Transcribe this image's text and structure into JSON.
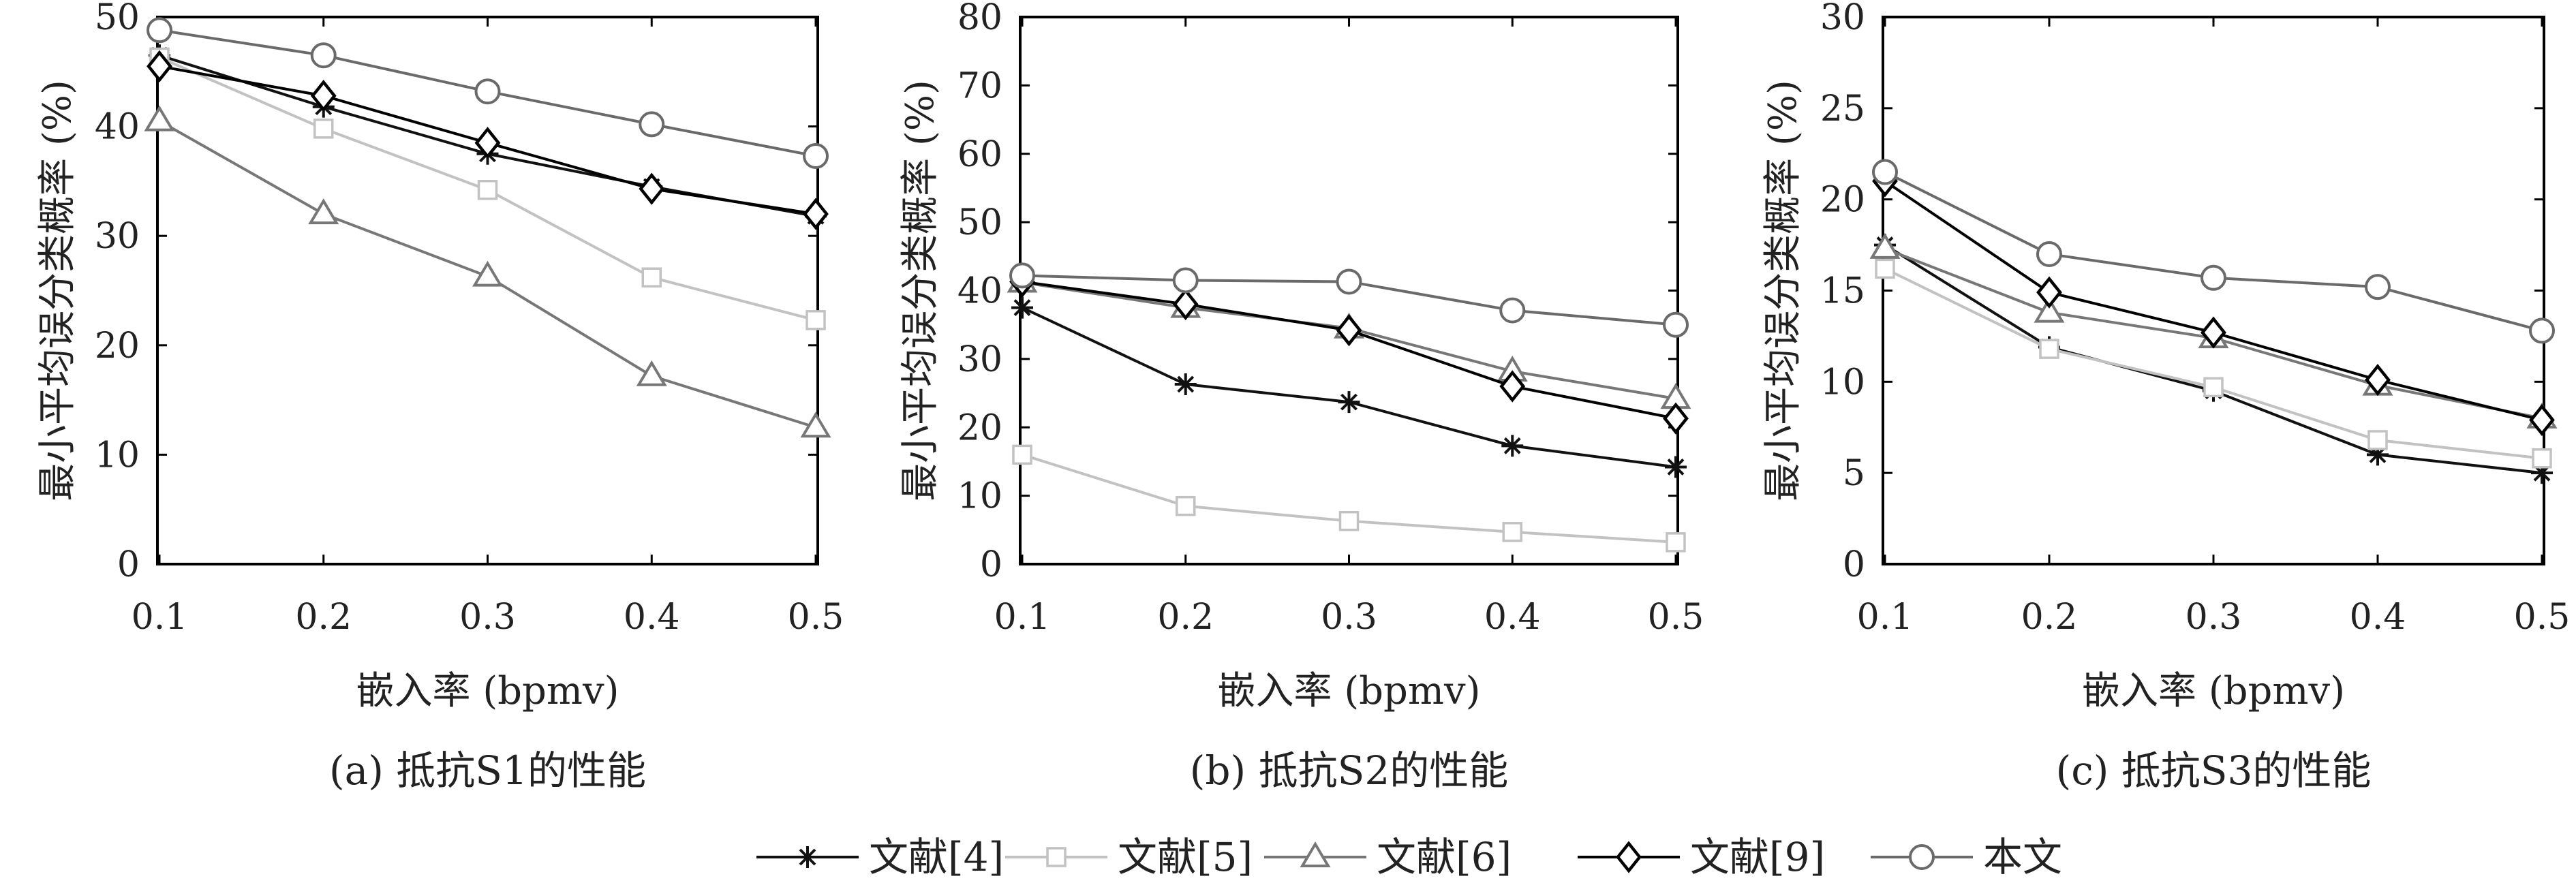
{
  "shared": {
    "xlabel": "嵌入率 (bpmv)",
    "ylabel": "最小平均误分类概率 (%)"
  },
  "legend": [
    {
      "label": "文献[4]",
      "marker": "asterisk",
      "color": "#111111"
    },
    {
      "label": "文献[5]",
      "marker": "square",
      "color": "#c2c2c2"
    },
    {
      "label": "文献[6]",
      "marker": "triangle",
      "color": "#777777"
    },
    {
      "label": "文献[9]",
      "marker": "diamond",
      "color": "#000000"
    },
    {
      "label": "本文",
      "marker": "circle",
      "color": "#6a6a6a"
    }
  ],
  "chart_data": [
    {
      "type": "line",
      "caption": "(a) 抵抗S1的性能",
      "xlabel": "嵌入率 (bpmv)",
      "ylabel": "最小平均误分类概率 (%)",
      "x": [
        0.1,
        0.2,
        0.3,
        0.4,
        0.5
      ],
      "xticks": [
        "0.1",
        "0.2",
        "0.3",
        "0.4",
        "0.5"
      ],
      "ylim": [
        0,
        50
      ],
      "yticks": [
        0,
        10,
        20,
        30,
        40,
        50
      ],
      "series": [
        {
          "name": "文献[4]",
          "values": [
            46.5,
            41.8,
            37.5,
            34.5,
            31.8
          ]
        },
        {
          "name": "文献[5]",
          "values": [
            46.3,
            39.8,
            34.2,
            26.2,
            22.3
          ]
        },
        {
          "name": "文献[6]",
          "values": [
            40.5,
            32.0,
            26.3,
            17.2,
            12.5
          ]
        },
        {
          "name": "文献[9]",
          "values": [
            45.5,
            42.8,
            38.5,
            34.3,
            32.0
          ]
        },
        {
          "name": "本文",
          "values": [
            48.8,
            46.5,
            43.2,
            40.2,
            37.3
          ]
        }
      ]
    },
    {
      "type": "line",
      "caption": "(b) 抵抗S2的性能",
      "xlabel": "嵌入率 (bpmv)",
      "ylabel": "最小平均误分类概率 (%)",
      "x": [
        0.1,
        0.2,
        0.3,
        0.4,
        0.5
      ],
      "xticks": [
        "0.1",
        "0.2",
        "0.3",
        "0.4",
        "0.5"
      ],
      "ylim": [
        0,
        80
      ],
      "yticks": [
        0,
        10,
        20,
        30,
        40,
        50,
        60,
        70,
        80
      ],
      "series": [
        {
          "name": "文献[4]",
          "values": [
            37.5,
            26.3,
            23.7,
            17.3,
            14.2
          ]
        },
        {
          "name": "文献[5]",
          "values": [
            16.0,
            8.5,
            6.3,
            4.7,
            3.2
          ]
        },
        {
          "name": "文献[6]",
          "values": [
            41.2,
            37.5,
            34.5,
            28.2,
            24.2
          ]
        },
        {
          "name": "文献[9]",
          "values": [
            41.3,
            38.0,
            34.2,
            26.0,
            21.3
          ]
        },
        {
          "name": "本文",
          "values": [
            42.2,
            41.5,
            41.3,
            37.1,
            35.0
          ]
        }
      ]
    },
    {
      "type": "line",
      "caption": "(c) 抵抗S3的性能",
      "xlabel": "嵌入率 (bpmv)",
      "ylabel": "最小平均误分类概率 (%)",
      "x": [
        0.1,
        0.2,
        0.3,
        0.4,
        0.5
      ],
      "xticks": [
        "0.1",
        "0.2",
        "0.3",
        "0.4",
        "0.5"
      ],
      "ylim": [
        0,
        30
      ],
      "yticks": [
        0,
        5,
        10,
        15,
        20,
        25,
        30
      ],
      "series": [
        {
          "name": "文献[4]",
          "values": [
            17.5,
            11.9,
            9.5,
            6.0,
            5.0
          ]
        },
        {
          "name": "文献[5]",
          "values": [
            16.2,
            11.8,
            9.7,
            6.8,
            5.8
          ]
        },
        {
          "name": "文献[6]",
          "values": [
            17.3,
            13.8,
            12.4,
            9.8,
            8.0
          ]
        },
        {
          "name": "文献[9]",
          "values": [
            21.0,
            14.9,
            12.7,
            10.1,
            7.9
          ]
        },
        {
          "name": "本文",
          "values": [
            21.5,
            17.0,
            15.7,
            15.2,
            12.8
          ]
        }
      ]
    }
  ]
}
